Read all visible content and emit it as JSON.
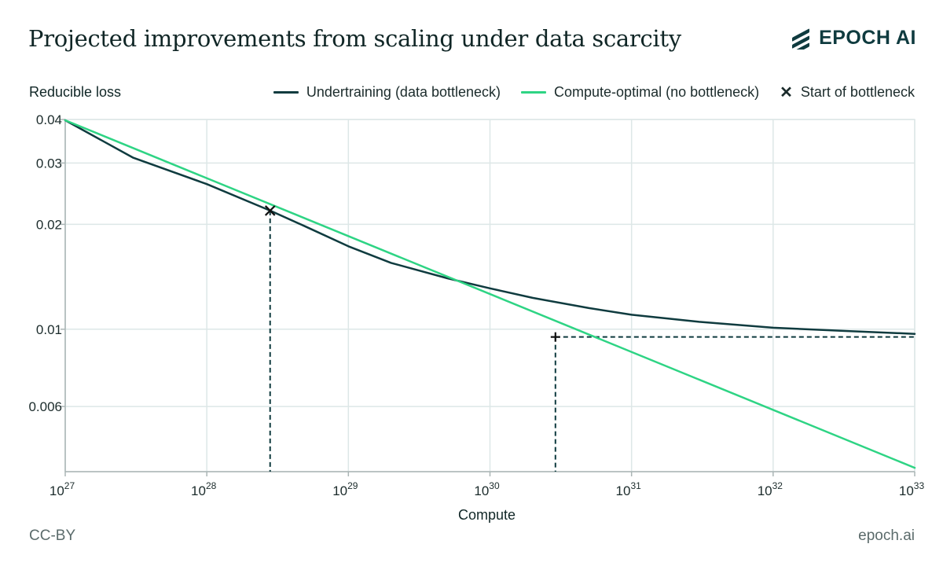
{
  "header": {
    "title": "Projected improvements from scaling under data scarcity",
    "brand": "EPOCH AI",
    "brand_icon": "epoch-stripes-icon"
  },
  "footer": {
    "license": "CC-BY",
    "site": "epoch.ai"
  },
  "colors": {
    "undertraining": "#0f3b3f",
    "compute_optimal": "#2ed484",
    "grid": "#dde7e7",
    "axis": "#aab5b5",
    "text": "#1b2b2b"
  },
  "chart_data": {
    "type": "line",
    "title": "Projected improvements from scaling under data scarcity",
    "xlabel": "Compute",
    "ylabel": "Reducible loss",
    "x_scale": "log",
    "y_scale": "log",
    "xlim": [
      1e+27,
      1e+33
    ],
    "ylim": [
      0.0039,
      0.04
    ],
    "x_ticks": [
      {
        "value": 1e+27,
        "base": "10",
        "exp": "27"
      },
      {
        "value": 1e+28,
        "base": "10",
        "exp": "28"
      },
      {
        "value": 1e+29,
        "base": "10",
        "exp": "29"
      },
      {
        "value": 1e+30,
        "base": "10",
        "exp": "30"
      },
      {
        "value": 1e+31,
        "base": "10",
        "exp": "31"
      },
      {
        "value": 1e+32,
        "base": "10",
        "exp": "32"
      },
      {
        "value": 1e+33,
        "base": "10",
        "exp": "33"
      }
    ],
    "y_ticks": [
      {
        "value": 0.04,
        "label": "0.04"
      },
      {
        "value": 0.03,
        "label": "0.03"
      },
      {
        "value": 0.02,
        "label": "0.02"
      },
      {
        "value": 0.01,
        "label": "0.01"
      },
      {
        "value": 0.006,
        "label": "0.006"
      }
    ],
    "grid": true,
    "legend_position": "top-right",
    "legend": {
      "undertraining": "Undertraining (data bottleneck)",
      "compute_optimal": "Compute-optimal (no bottleneck)",
      "start_marker": "Start of bottleneck"
    },
    "series": [
      {
        "name": "Undertraining (data bottleneck)",
        "x": [
          1e+27,
          3e+27,
          1e+28,
          2.8e+28,
          5e+28,
          1e+29,
          2e+29,
          5e+29,
          1e+30,
          2e+30,
          5e+30,
          1e+31,
          3e+31,
          1e+32,
          3e+32,
          1e+33
        ],
        "y": [
          0.0398,
          0.0311,
          0.0261,
          0.0219,
          0.0197,
          0.0173,
          0.0155,
          0.014,
          0.0131,
          0.0123,
          0.0115,
          0.011,
          0.0105,
          0.0101,
          0.0099,
          0.0097
        ]
      },
      {
        "name": "Compute-optimal (no bottleneck)",
        "x": [
          1e+27,
          1e+33
        ],
        "y": [
          0.0398,
          0.004
        ]
      }
    ],
    "annotations": {
      "start_of_bottleneck": {
        "x": 2.8e+28,
        "y": 0.0219
      },
      "equivalent_point": {
        "x": 2.9e+30,
        "y": 0.0095
      }
    }
  }
}
